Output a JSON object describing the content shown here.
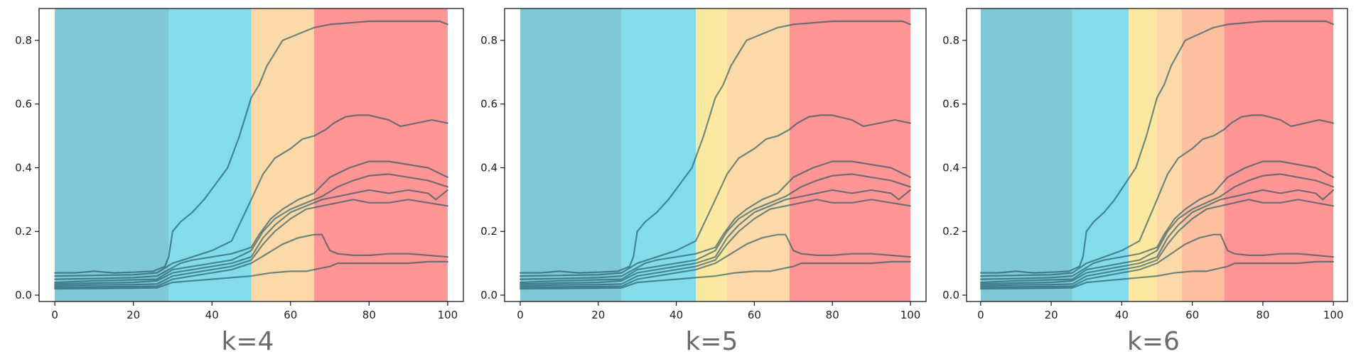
{
  "chart_data": [
    {
      "type": "line",
      "caption": "k=4",
      "xlim": [
        -4,
        104
      ],
      "ylim": [
        -0.02,
        0.9
      ],
      "xticks": [
        0,
        20,
        40,
        60,
        80,
        100
      ],
      "yticks": [
        0.0,
        0.2,
        0.4,
        0.6,
        0.8
      ],
      "grid": false,
      "segments": [
        {
          "from": 0,
          "to": 29,
          "color": "#7fc9d6"
        },
        {
          "from": 29,
          "to": 50,
          "color": "#84dceb"
        },
        {
          "from": 50,
          "to": 66,
          "color": "#fbd9a8"
        },
        {
          "from": 66,
          "to": 100,
          "color": "#ff9594"
        }
      ]
    },
    {
      "type": "line",
      "caption": "k=5",
      "xlim": [
        -4,
        104
      ],
      "ylim": [
        -0.02,
        0.9
      ],
      "xticks": [
        0,
        20,
        40,
        60,
        80,
        100
      ],
      "yticks": [
        0.0,
        0.2,
        0.4,
        0.6,
        0.8
      ],
      "grid": false,
      "segments": [
        {
          "from": 0,
          "to": 26,
          "color": "#7fc9d6"
        },
        {
          "from": 26,
          "to": 45,
          "color": "#84dceb"
        },
        {
          "from": 45,
          "to": 53,
          "color": "#fde8a2"
        },
        {
          "from": 53,
          "to": 69,
          "color": "#fbd9a8"
        },
        {
          "from": 69,
          "to": 100,
          "color": "#ff9594"
        }
      ]
    },
    {
      "type": "line",
      "caption": "k=6",
      "xlim": [
        -4,
        104
      ],
      "ylim": [
        -0.02,
        0.9
      ],
      "xticks": [
        0,
        20,
        40,
        60,
        80,
        100
      ],
      "yticks": [
        0.0,
        0.2,
        0.4,
        0.6,
        0.8
      ],
      "grid": false,
      "segments": [
        {
          "from": 0,
          "to": 26,
          "color": "#7fc9d6"
        },
        {
          "from": 26,
          "to": 42,
          "color": "#84dceb"
        },
        {
          "from": 42,
          "to": 50,
          "color": "#fde8a2"
        },
        {
          "from": 50,
          "to": 57,
          "color": "#fbd9a8"
        },
        {
          "from": 57,
          "to": 69,
          "color": "#fdc0a0"
        },
        {
          "from": 69,
          "to": 100,
          "color": "#ff9594"
        }
      ]
    }
  ],
  "series": [
    {
      "color": "#1a4f5e",
      "points": [
        [
          0,
          0.07
        ],
        [
          5,
          0.07
        ],
        [
          10,
          0.075
        ],
        [
          15,
          0.07
        ],
        [
          20,
          0.072
        ],
        [
          25,
          0.075
        ],
        [
          28,
          0.09
        ],
        [
          29,
          0.12
        ],
        [
          30,
          0.2
        ],
        [
          32,
          0.23
        ],
        [
          35,
          0.26
        ],
        [
          38,
          0.3
        ],
        [
          41,
          0.35
        ],
        [
          44,
          0.4
        ],
        [
          47,
          0.5
        ],
        [
          50,
          0.62
        ],
        [
          52,
          0.66
        ],
        [
          54,
          0.72
        ],
        [
          56,
          0.76
        ],
        [
          58,
          0.8
        ],
        [
          60,
          0.81
        ],
        [
          62,
          0.82
        ],
        [
          64,
          0.83
        ],
        [
          66,
          0.84
        ],
        [
          70,
          0.85
        ],
        [
          80,
          0.86
        ],
        [
          90,
          0.86
        ],
        [
          95,
          0.86
        ],
        [
          98,
          0.86
        ],
        [
          100,
          0.85
        ]
      ]
    },
    {
      "color": "#1a4f5e",
      "points": [
        [
          0,
          0.06
        ],
        [
          10,
          0.062
        ],
        [
          20,
          0.064
        ],
        [
          26,
          0.07
        ],
        [
          30,
          0.1
        ],
        [
          35,
          0.12
        ],
        [
          40,
          0.14
        ],
        [
          45,
          0.17
        ],
        [
          50,
          0.3
        ],
        [
          53,
          0.38
        ],
        [
          56,
          0.43
        ],
        [
          60,
          0.46
        ],
        [
          63,
          0.49
        ],
        [
          66,
          0.5
        ],
        [
          69,
          0.52
        ],
        [
          71,
          0.54
        ],
        [
          74,
          0.56
        ],
        [
          77,
          0.565
        ],
        [
          80,
          0.565
        ],
        [
          85,
          0.55
        ],
        [
          88,
          0.53
        ],
        [
          92,
          0.54
        ],
        [
          96,
          0.55
        ],
        [
          100,
          0.54
        ]
      ]
    },
    {
      "color": "#1a4f5e",
      "points": [
        [
          0,
          0.05
        ],
        [
          10,
          0.052
        ],
        [
          20,
          0.055
        ],
        [
          26,
          0.06
        ],
        [
          29,
          0.08
        ],
        [
          32,
          0.1
        ],
        [
          35,
          0.11
        ],
        [
          40,
          0.12
        ],
        [
          45,
          0.13
        ],
        [
          50,
          0.15
        ],
        [
          52,
          0.19
        ],
        [
          55,
          0.24
        ],
        [
          58,
          0.27
        ],
        [
          62,
          0.3
        ],
        [
          66,
          0.32
        ],
        [
          70,
          0.37
        ],
        [
          75,
          0.4
        ],
        [
          80,
          0.42
        ],
        [
          85,
          0.42
        ],
        [
          90,
          0.41
        ],
        [
          95,
          0.4
        ],
        [
          100,
          0.37
        ]
      ]
    },
    {
      "color": "#1a4f5e",
      "points": [
        [
          0,
          0.04
        ],
        [
          10,
          0.045
        ],
        [
          20,
          0.048
        ],
        [
          26,
          0.05
        ],
        [
          30,
          0.08
        ],
        [
          35,
          0.09
        ],
        [
          40,
          0.1
        ],
        [
          45,
          0.11
        ],
        [
          50,
          0.14
        ],
        [
          53,
          0.2
        ],
        [
          56,
          0.24
        ],
        [
          60,
          0.27
        ],
        [
          64,
          0.29
        ],
        [
          68,
          0.31
        ],
        [
          72,
          0.34
        ],
        [
          76,
          0.36
        ],
        [
          80,
          0.375
        ],
        [
          85,
          0.38
        ],
        [
          90,
          0.37
        ],
        [
          95,
          0.36
        ],
        [
          100,
          0.34
        ]
      ]
    },
    {
      "color": "#1a4f5e",
      "points": [
        [
          0,
          0.035
        ],
        [
          10,
          0.038
        ],
        [
          20,
          0.04
        ],
        [
          26,
          0.045
        ],
        [
          30,
          0.07
        ],
        [
          35,
          0.08
        ],
        [
          40,
          0.09
        ],
        [
          45,
          0.1
        ],
        [
          50,
          0.12
        ],
        [
          53,
          0.18
        ],
        [
          56,
          0.22
        ],
        [
          60,
          0.26
        ],
        [
          64,
          0.28
        ],
        [
          68,
          0.3
        ],
        [
          72,
          0.31
        ],
        [
          76,
          0.32
        ],
        [
          80,
          0.33
        ],
        [
          85,
          0.32
        ],
        [
          90,
          0.33
        ],
        [
          95,
          0.32
        ],
        [
          97,
          0.3
        ],
        [
          100,
          0.33
        ]
      ]
    },
    {
      "color": "#1a4f5e",
      "points": [
        [
          0,
          0.03
        ],
        [
          10,
          0.032
        ],
        [
          20,
          0.033
        ],
        [
          26,
          0.035
        ],
        [
          30,
          0.06
        ],
        [
          35,
          0.07
        ],
        [
          40,
          0.08
        ],
        [
          45,
          0.09
        ],
        [
          50,
          0.11
        ],
        [
          53,
          0.16
        ],
        [
          56,
          0.2
        ],
        [
          60,
          0.24
        ],
        [
          64,
          0.27
        ],
        [
          68,
          0.28
        ],
        [
          72,
          0.29
        ],
        [
          76,
          0.3
        ],
        [
          80,
          0.29
        ],
        [
          85,
          0.29
        ],
        [
          90,
          0.3
        ],
        [
          95,
          0.29
        ],
        [
          100,
          0.28
        ]
      ]
    },
    {
      "color": "#1a4f5e",
      "points": [
        [
          0,
          0.025
        ],
        [
          10,
          0.026
        ],
        [
          20,
          0.027
        ],
        [
          26,
          0.028
        ],
        [
          30,
          0.05
        ],
        [
          35,
          0.06
        ],
        [
          40,
          0.07
        ],
        [
          45,
          0.08
        ],
        [
          50,
          0.1
        ],
        [
          54,
          0.13
        ],
        [
          58,
          0.16
        ],
        [
          62,
          0.18
        ],
        [
          66,
          0.19
        ],
        [
          68,
          0.19
        ],
        [
          70,
          0.14
        ],
        [
          72,
          0.13
        ],
        [
          76,
          0.125
        ],
        [
          80,
          0.125
        ],
        [
          85,
          0.13
        ],
        [
          90,
          0.13
        ],
        [
          95,
          0.125
        ],
        [
          100,
          0.12
        ]
      ]
    },
    {
      "color": "#1a4f5e",
      "points": [
        [
          0,
          0.02
        ],
        [
          10,
          0.021
        ],
        [
          20,
          0.022
        ],
        [
          26,
          0.023
        ],
        [
          30,
          0.04
        ],
        [
          35,
          0.045
        ],
        [
          40,
          0.05
        ],
        [
          45,
          0.055
        ],
        [
          50,
          0.06
        ],
        [
          55,
          0.07
        ],
        [
          60,
          0.075
        ],
        [
          64,
          0.075
        ],
        [
          66,
          0.08
        ],
        [
          70,
          0.09
        ],
        [
          72,
          0.1
        ],
        [
          76,
          0.1
        ],
        [
          80,
          0.1
        ],
        [
          85,
          0.1
        ],
        [
          90,
          0.1
        ],
        [
          95,
          0.105
        ],
        [
          100,
          0.105
        ]
      ]
    }
  ]
}
